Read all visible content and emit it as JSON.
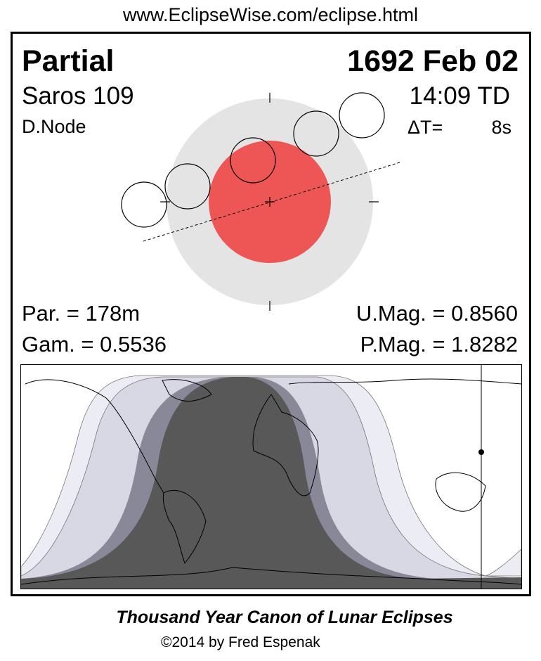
{
  "url": "www.EclipseWise.com/eclipse.html",
  "eclipse": {
    "type": "Partial",
    "date": "1692 Feb 02",
    "saros": "Saros 109",
    "time": "14:09 TD",
    "node": "D.Node",
    "delta_t_label": "ΔT=",
    "delta_t_value": "8s",
    "par": "Par. = 178m",
    "gam": "Gam. = 0.5536",
    "umag": "U.Mag. = 0.8560",
    "pmag": "P.Mag. = 1.8282"
  },
  "colors": {
    "penumbra": "#e4e4e4",
    "umbra": "#ee5656",
    "map_umbra": "#585858",
    "map_penumbra_inner": "#888898",
    "map_penumbra_mid": "#d8d8e4",
    "map_penumbra_outer": "#ececf4"
  },
  "footer": {
    "title": "Thousand Year Canon of Lunar Eclipses",
    "copyright": "©2014 by Fred Espenak"
  }
}
